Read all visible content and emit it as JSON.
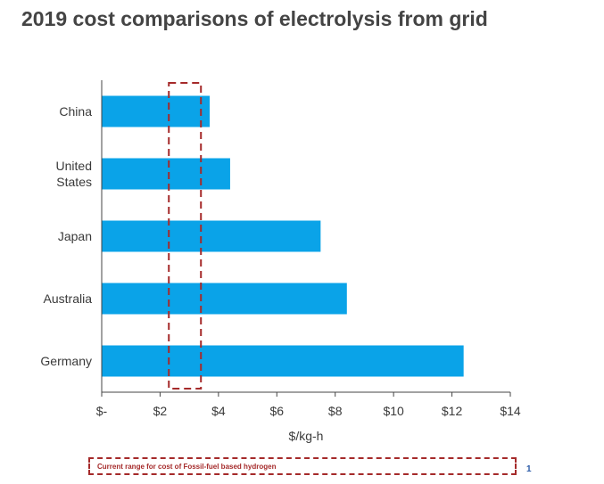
{
  "title": "2019 cost comparisons of electrolysis from grid",
  "note": "Current range for cost of Fossil-fuel based hydrogen",
  "page_number": "1",
  "colors": {
    "bar": "#0aa3e8",
    "range_box": "#a52a2a",
    "axis": "#444444"
  },
  "chart_data": {
    "type": "bar",
    "orientation": "horizontal",
    "categories": [
      [
        "China"
      ],
      [
        "United",
        "States"
      ],
      [
        "Japan"
      ],
      [
        "Australia"
      ],
      [
        "Germany"
      ]
    ],
    "values": [
      3.7,
      4.4,
      7.5,
      8.4,
      12.4
    ],
    "xlabel": "$/kg-h",
    "xlim": [
      0,
      14
    ],
    "xticks": [
      0,
      2,
      4,
      6,
      8,
      10,
      12,
      14
    ],
    "xtick_labels": [
      "$-",
      "$2",
      "$4",
      "$6",
      "$8",
      "$10",
      "$12",
      "$14"
    ],
    "highlight_range": [
      2.3,
      3.4
    ],
    "grid": false
  }
}
